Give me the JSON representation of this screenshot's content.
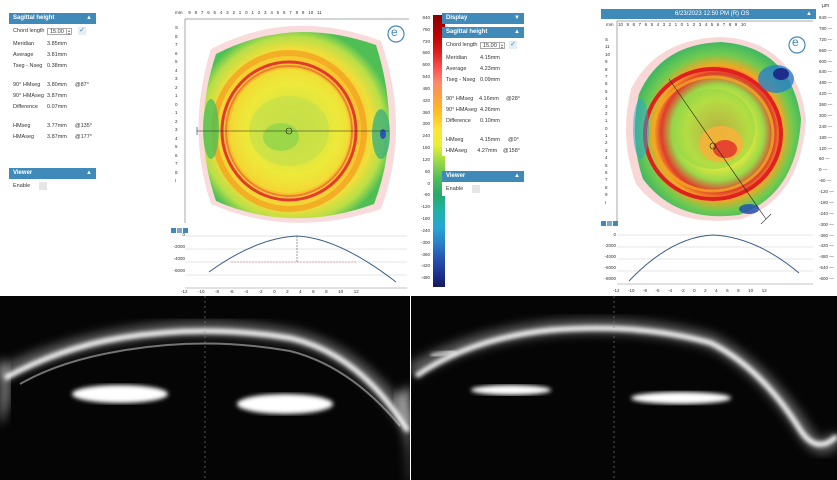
{
  "left_panel": {
    "title": "Sagittal height",
    "chord_length_label": "Chord length",
    "chord_length_value": "15.00",
    "rows": [
      {
        "label": "Meridian",
        "value": "3.85mm",
        "angle": ""
      },
      {
        "label": "Average",
        "value": "3.81mm",
        "angle": ""
      },
      {
        "label": "Tseg - Nseg",
        "value": "0.38mm",
        "angle": ""
      },
      {
        "label": "90° HMseg",
        "value": "3.80mm",
        "angle": "@87°"
      },
      {
        "label": "90° HMAseg",
        "value": "3.87mm",
        "angle": ""
      },
      {
        "label": "Difference",
        "value": "0.07mm",
        "angle": ""
      },
      {
        "label": "HMseg",
        "value": "3.77mm",
        "angle": "@135°"
      },
      {
        "label": "HMAseg",
        "value": "3.87mm",
        "angle": "@177°"
      }
    ],
    "viewer_title": "Viewer",
    "enable_label": "Enable"
  },
  "middle_panel": {
    "display_title": "Display",
    "sag_title": "Sagittal height",
    "chord_length_label": "Chord length",
    "chord_length_value": "15.00",
    "rows": [
      {
        "label": "Meridian",
        "value": "4.15mm",
        "angle": ""
      },
      {
        "label": "Average",
        "value": "4.23mm",
        "angle": ""
      },
      {
        "label": "Tseg - Nseg",
        "value": "0.09mm",
        "angle": ""
      },
      {
        "label": "90° HMseg",
        "value": "4.16mm",
        "angle": "@28°"
      },
      {
        "label": "90° HMAseg",
        "value": "4.26mm",
        "angle": ""
      },
      {
        "label": "Difference",
        "value": "0.10mm",
        "angle": ""
      },
      {
        "label": "HMseg",
        "value": "4.15mm",
        "angle": "@0°"
      },
      {
        "label": "HMAseg",
        "value": "4.27mm",
        "angle": "@158°"
      }
    ],
    "viewer_title": "Viewer",
    "enable_label": "Enable"
  },
  "color_scale": {
    "ticks": [
      "840",
      "780",
      "720",
      "660",
      "600",
      "540",
      "480",
      "420",
      "360",
      "300",
      "240",
      "180",
      "120",
      "60",
      "0",
      "-60",
      "-120",
      "-180",
      "-240",
      "-300",
      "-360",
      "-420",
      "-480"
    ]
  },
  "right_scale": {
    "title": "µm",
    "ticks": [
      "840",
      "780",
      "720",
      "660",
      "600",
      "540",
      "480",
      "420",
      "360",
      "300",
      "240",
      "180",
      "120",
      "60",
      "0",
      "-60",
      "-120",
      "-180",
      "-240",
      "-300",
      "-360",
      "-420",
      "-480",
      "-540",
      "-600"
    ]
  },
  "right_map": {
    "header": "6/23/2023 12:50 PM (R) OS"
  },
  "map1": {
    "ruler_unit": "mm",
    "top_ruler": [
      "9",
      "8",
      "7",
      "6",
      "5",
      "4",
      "3",
      "2",
      "1",
      "0",
      "1",
      "2",
      "3",
      "4",
      "5",
      "6",
      "7",
      "8",
      "9",
      "10",
      "11"
    ],
    "left_ruler": [
      "S",
      "8",
      "7",
      "6",
      "5",
      "4",
      "3",
      "2",
      "1",
      "0",
      "1",
      "2",
      "3",
      "4",
      "5",
      "6",
      "7",
      "8",
      "I"
    ]
  },
  "map2": {
    "ruler_unit": "mm",
    "top_ruler": [
      "10",
      "9",
      "8",
      "7",
      "6",
      "5",
      "4",
      "3",
      "2",
      "1",
      "0",
      "1",
      "2",
      "3",
      "4",
      "5",
      "6",
      "7",
      "8",
      "9",
      "10"
    ],
    "left_ruler": [
      "S",
      "11",
      "10",
      "9",
      "8",
      "7",
      "6",
      "5",
      "4",
      "3",
      "2",
      "1",
      "0",
      "1",
      "2",
      "3",
      "4",
      "5",
      "6",
      "7",
      "8",
      "9",
      "I"
    ]
  },
  "profile1": {
    "y_ticks": [
      "0",
      "-2000",
      "-4000",
      "-6000"
    ],
    "x_ticks": [
      "-12",
      "-10",
      "-8",
      "-6",
      "-4",
      "-2",
      "0",
      "2",
      "4",
      "6",
      "8",
      "10",
      "12"
    ]
  },
  "profile2": {
    "y_ticks": [
      "0",
      "-2000",
      "-4000",
      "-6000",
      "-8000"
    ],
    "x_ticks": [
      "-12",
      "-10",
      "-8",
      "-6",
      "-4",
      "-2",
      "0",
      "2",
      "4",
      "6",
      "8",
      "10",
      "12"
    ]
  },
  "logo_letter": "e",
  "colors": {
    "panel_header": "#3f8ab9",
    "profile_line": "#3a5f8a"
  }
}
